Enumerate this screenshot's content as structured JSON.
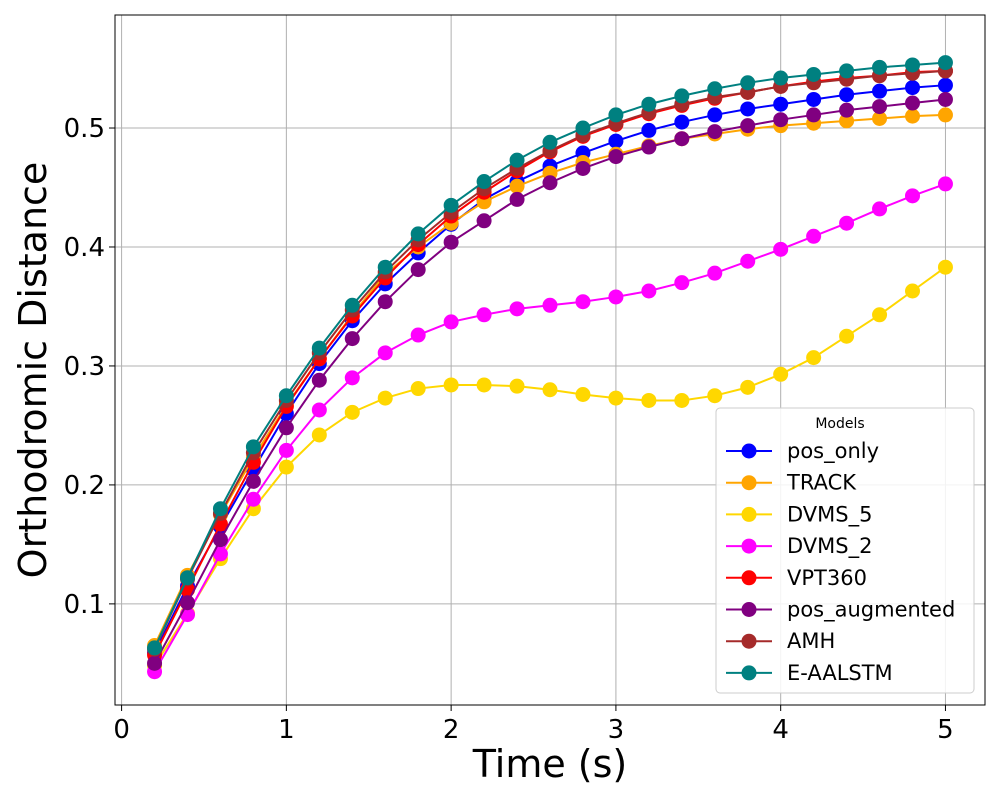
{
  "chart_data": {
    "type": "line",
    "title": "",
    "xlabel": "Time (s)",
    "ylabel": "Orthodromic Distance",
    "xlim": [
      -0.04,
      5.24
    ],
    "ylim": [
      0.015,
      0.595
    ],
    "xticks": [
      0,
      1,
      2,
      3,
      4,
      5
    ],
    "yticks": [
      0.1,
      0.2,
      0.3,
      0.4,
      0.5
    ],
    "grid": true,
    "legend_title": "Models",
    "legend_position": "lower right",
    "x": [
      0.2,
      0.4,
      0.6,
      0.8,
      1.0,
      1.2,
      1.4,
      1.6,
      1.8,
      2.0,
      2.2,
      2.4,
      2.6,
      2.8,
      3.0,
      3.2,
      3.4,
      3.6,
      3.8,
      4.0,
      4.2,
      4.4,
      4.6,
      4.8,
      5.0
    ],
    "series": [
      {
        "name": "pos_only",
        "color": "#0000ff",
        "values": [
          0.059,
          0.115,
          0.165,
          0.213,
          0.26,
          0.302,
          0.338,
          0.369,
          0.395,
          0.419,
          0.44,
          0.455,
          0.468,
          0.479,
          0.489,
          0.498,
          0.505,
          0.511,
          0.516,
          0.52,
          0.524,
          0.528,
          0.531,
          0.534,
          0.536
        ]
      },
      {
        "name": "TRACK",
        "color": "#ffa500",
        "values": [
          0.065,
          0.124,
          0.175,
          0.223,
          0.267,
          0.306,
          0.343,
          0.377,
          0.4,
          0.42,
          0.438,
          0.451,
          0.462,
          0.471,
          0.478,
          0.485,
          0.491,
          0.495,
          0.499,
          0.502,
          0.504,
          0.506,
          0.508,
          0.51,
          0.511
        ]
      },
      {
        "name": "DVMS_5",
        "color": "#ffd700",
        "values": [
          0.048,
          0.092,
          0.138,
          0.18,
          0.215,
          0.242,
          0.261,
          0.273,
          0.281,
          0.284,
          0.284,
          0.283,
          0.28,
          0.276,
          0.273,
          0.271,
          0.271,
          0.275,
          0.282,
          0.293,
          0.307,
          0.325,
          0.343,
          0.363,
          0.383
        ]
      },
      {
        "name": "DVMS_2",
        "color": "#ff00ff",
        "values": [
          0.043,
          0.091,
          0.142,
          0.188,
          0.229,
          0.263,
          0.29,
          0.311,
          0.326,
          0.337,
          0.343,
          0.348,
          0.351,
          0.354,
          0.358,
          0.363,
          0.37,
          0.378,
          0.388,
          0.398,
          0.409,
          0.42,
          0.432,
          0.443,
          0.453
        ]
      },
      {
        "name": "VPT360",
        "color": "#ff0000",
        "values": [
          0.057,
          0.112,
          0.167,
          0.219,
          0.266,
          0.306,
          0.342,
          0.374,
          0.402,
          0.426,
          0.446,
          0.464,
          0.48,
          0.493,
          0.503,
          0.512,
          0.519,
          0.525,
          0.53,
          0.535,
          0.539,
          0.542,
          0.544,
          0.547,
          0.548
        ]
      },
      {
        "name": "pos_augmented",
        "color": "#800080",
        "values": [
          0.05,
          0.101,
          0.154,
          0.203,
          0.248,
          0.288,
          0.323,
          0.354,
          0.381,
          0.404,
          0.422,
          0.44,
          0.454,
          0.466,
          0.476,
          0.484,
          0.491,
          0.497,
          0.502,
          0.507,
          0.511,
          0.515,
          0.518,
          0.521,
          0.524
        ]
      },
      {
        "name": "AMH",
        "color": "#a52a2a",
        "values": [
          0.062,
          0.121,
          0.176,
          0.227,
          0.271,
          0.311,
          0.347,
          0.379,
          0.406,
          0.429,
          0.449,
          0.466,
          0.481,
          0.494,
          0.504,
          0.513,
          0.52,
          0.526,
          0.53,
          0.535,
          0.538,
          0.541,
          0.544,
          0.546,
          0.548
        ]
      },
      {
        "name": "E-AALSTM",
        "color": "#008080",
        "values": [
          0.063,
          0.122,
          0.18,
          0.232,
          0.275,
          0.315,
          0.351,
          0.383,
          0.411,
          0.435,
          0.455,
          0.473,
          0.488,
          0.5,
          0.511,
          0.52,
          0.527,
          0.533,
          0.538,
          0.542,
          0.545,
          0.548,
          0.551,
          0.553,
          0.555
        ]
      }
    ]
  }
}
